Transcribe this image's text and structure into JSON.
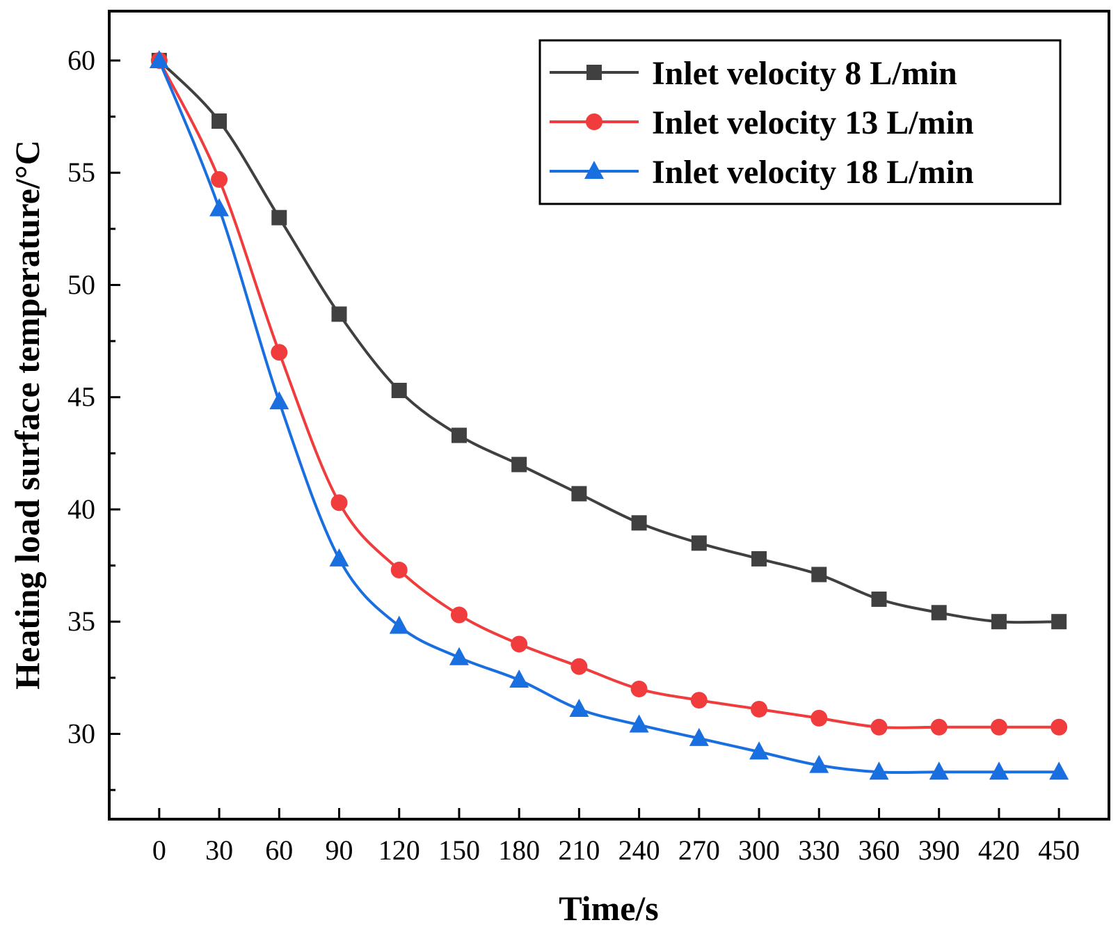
{
  "chart_data": {
    "type": "line",
    "title": "",
    "xlabel": "Time/s",
    "ylabel": "Heating load surface temperature/°C",
    "x": [
      0,
      30,
      60,
      90,
      120,
      150,
      180,
      210,
      240,
      270,
      300,
      330,
      360,
      390,
      420,
      450
    ],
    "x_tick_labels": [
      "0",
      "30",
      "60",
      "90",
      "120",
      "150",
      "180",
      "210",
      "240",
      "270",
      "300",
      "330",
      "360",
      "390",
      "420",
      "450"
    ],
    "y_ticks": [
      30,
      35,
      40,
      45,
      50,
      55,
      60
    ],
    "y_tick_labels": [
      "30",
      "35",
      "40",
      "45",
      "50",
      "55",
      "60"
    ],
    "ylim": [
      26.2,
      62.2
    ],
    "xlim": [
      -25,
      475
    ],
    "grid": false,
    "legend_position": "top-right",
    "series": [
      {
        "name": "Inlet velocity 8 L/min",
        "color": "#404040",
        "marker": "square",
        "values": [
          60.0,
          57.3,
          53.0,
          48.7,
          45.3,
          43.3,
          42.0,
          40.7,
          39.4,
          38.5,
          37.8,
          37.1,
          36.0,
          35.4,
          35.0,
          35.0
        ]
      },
      {
        "name": "Inlet velocity 13 L/min",
        "color": "#f03c3c",
        "marker": "circle",
        "values": [
          60.0,
          54.7,
          47.0,
          40.3,
          37.3,
          35.3,
          34.0,
          33.0,
          32.0,
          31.5,
          31.1,
          30.7,
          30.3,
          30.3,
          30.3,
          30.3
        ]
      },
      {
        "name": "Inlet velocity 18 L/min",
        "color": "#1a6fe0",
        "marker": "triangle",
        "values": [
          60.0,
          53.4,
          44.8,
          37.8,
          34.8,
          33.4,
          32.4,
          31.1,
          30.4,
          29.8,
          29.2,
          28.6,
          28.3,
          28.3,
          28.3,
          28.3
        ]
      }
    ]
  }
}
